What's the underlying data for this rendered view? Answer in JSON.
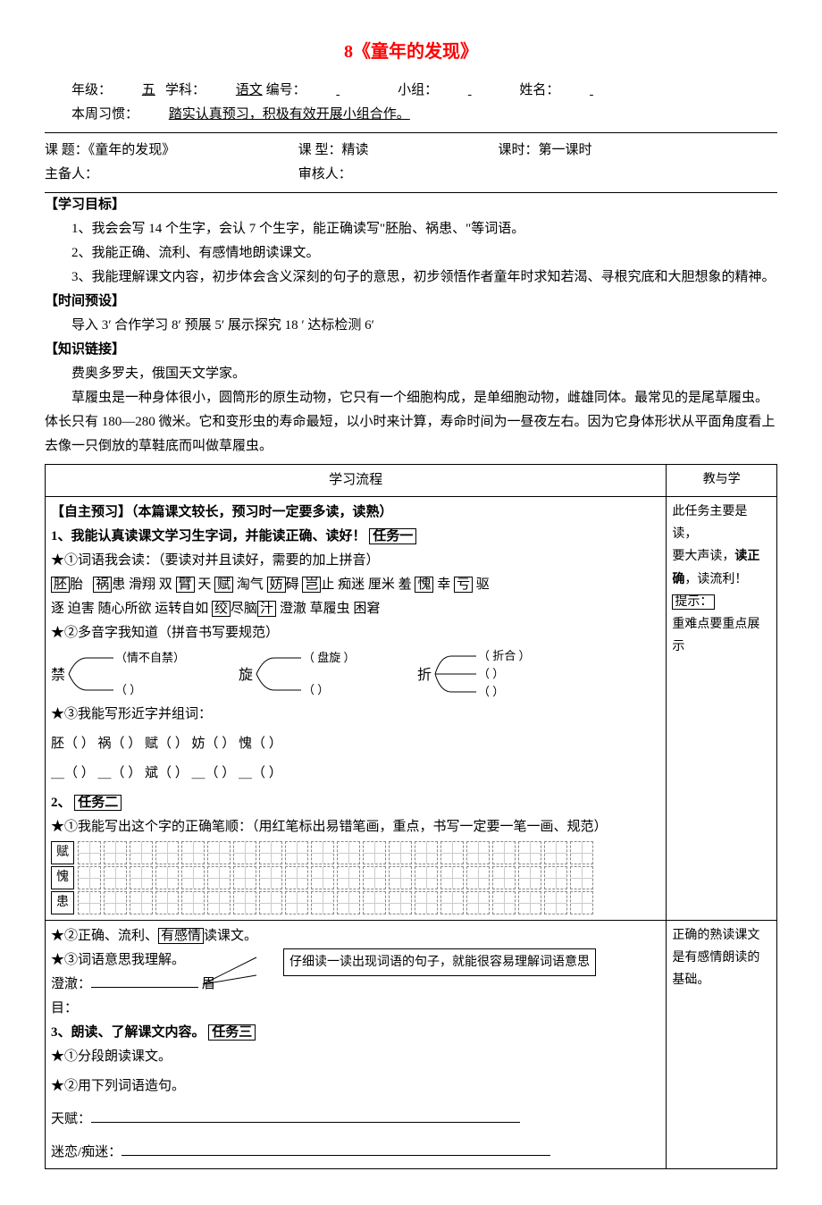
{
  "title": "8《童年的发现》",
  "header": {
    "grade_label": "年级：",
    "grade": "五",
    "subject_label": "学科：",
    "subject": "语文",
    "index_label": "编号：",
    "group_label": "小组：",
    "name_label": "姓名：",
    "habit_label": "本周习惯：",
    "habit": "踏实认真预习，积极有效开展小组合作。"
  },
  "meta": {
    "topic_label": "课 题：",
    "topic": "《童年的发现》",
    "type_label": "课 型：",
    "type": "精读",
    "period_label": "课时：",
    "period": "第一课时",
    "host_label": "主备人：",
    "review_label": "审核人："
  },
  "goals": {
    "heading": "【学习目标】",
    "g1": "1、我会会写 14 个生字，会认 7 个生字，能正确读写\"胚胎、祸患、\"等词语。",
    "g2": "2、我能正确、流利、有感情地朗读课文。",
    "g3": "3、我能理解课文内容，初步体会含义深刻的句子的意思，初步领悟作者童年时求知若渴、寻根究底和大胆想象的精神。"
  },
  "time": {
    "heading": "【时间预设】",
    "text": "导入 3′  合作学习  8′ 预展  5′ 展示探究 18 ′  达标检测 6′"
  },
  "link": {
    "heading": "【知识链接】",
    "p1": "费奥多罗夫，俄国天文学家。",
    "p2": "草履虫是一种身体很小，圆筒形的原生动物，它只有一个细胞构成，是单细胞动物，雌雄同体。最常见的是尾草履虫。体长只有 180—280 微米。它和变形虫的寿命最短，以小时来计算，寿命时间为一昼夜左右。因为它身体形状从平面角度看上去像一只倒放的草鞋底而叫做草履虫。"
  },
  "table": {
    "h_left": "学习流程",
    "h_right": "教与学"
  },
  "preview": {
    "heading": "【自主预习】（本篇课文较长，预习时一定要多读，读熟）",
    "t1_title": "1、我能认真读课文学习生字词，并能读正确、读好！",
    "t1_tag": "任务一",
    "s1_1": "★①词语我会读：（要读对并且读好，需要的加上拼音）",
    "words_boxed": [
      "胚",
      "祸",
      "臂",
      "赋",
      "妨",
      "岂",
      "愧",
      "亏"
    ],
    "words_line1_a": "胎",
    "words_line1_b": "患   滑翔   双",
    "words_line1_c": "  天",
    "words_line1_d": "   淘气",
    "words_line1_e": "碍   ",
    "words_line1_f": "止 痴迷   厘米  羞",
    "words_line1_g": "   幸",
    "words_line1_h": "   驱",
    "words_line2": "逐   迫害  随心所欲  运转自如  绞尽脑汁  澄澈  草履虫 困窘",
    "words_box2": "绞",
    "words_box2b": "汁",
    "s1_2": "★②多音字我知道（拼音书写要规范）",
    "poly": {
      "jin": {
        "char": "禁",
        "a": "（情不自禁）",
        "b": "（          ）"
      },
      "xuan": {
        "char": "旋",
        "a": "（ 盘旋 ）",
        "b": "（          ）"
      },
      "zhe": {
        "char": "折",
        "a": "（ 折合 ）",
        "b": "（          ）",
        "c": "（          ）"
      }
    },
    "s1_3": "★③我能写形近字并组词：",
    "xing_row1": "胚（      ） 祸（      ） 赋（      ） 妨（      ） 愧（      ）",
    "xing_row2": "＿（      ） ＿（      ） 斌（      ） ＿（      ） ＿（      ）",
    "t2_title": "2、",
    "t2_tag": "任务二",
    "s2_1": "★①我能写出这个字的正确笔顺：（用红笔标出易错笔画，重点，书写一定要一笔一画、规范）",
    "grid_chars": [
      "赋",
      "愧",
      "患"
    ],
    "s2_2": "★②正确、流利、有感情读课文。",
    "s2_2_box": "有感情",
    "s2_3": "★③词语意思我理解。",
    "s2_3_fill_a": "澄澈：",
    "s2_3_fill_b": "眉目：",
    "callout_text": "仔细读一读出现词语的句子，就能很容易理解词语意思",
    "t3_title": "3、朗读、了解课文内容。",
    "t3_tag": "任务三",
    "s3_1": "★①分段朗读课文。",
    "s3_2": "★②用下列词语造句。",
    "s3_fill_a": "天赋：",
    "s3_fill_b": "迷恋/痴迷："
  },
  "notes": {
    "r1_a": "此任务主要是读，",
    "r1_b": "要大声读，读正确，",
    "r1_b_bold": "读正确",
    "r1_c": "读流利！",
    "r1_d": "提示：",
    "r1_e": "重难点要重点展示",
    "r2_a": "正确的熟读课文是有感情朗读的基础。"
  },
  "colors": {
    "title": "#ff0000",
    "text": "#000000",
    "bg": "#ffffff",
    "grid_dash": "#888888"
  }
}
